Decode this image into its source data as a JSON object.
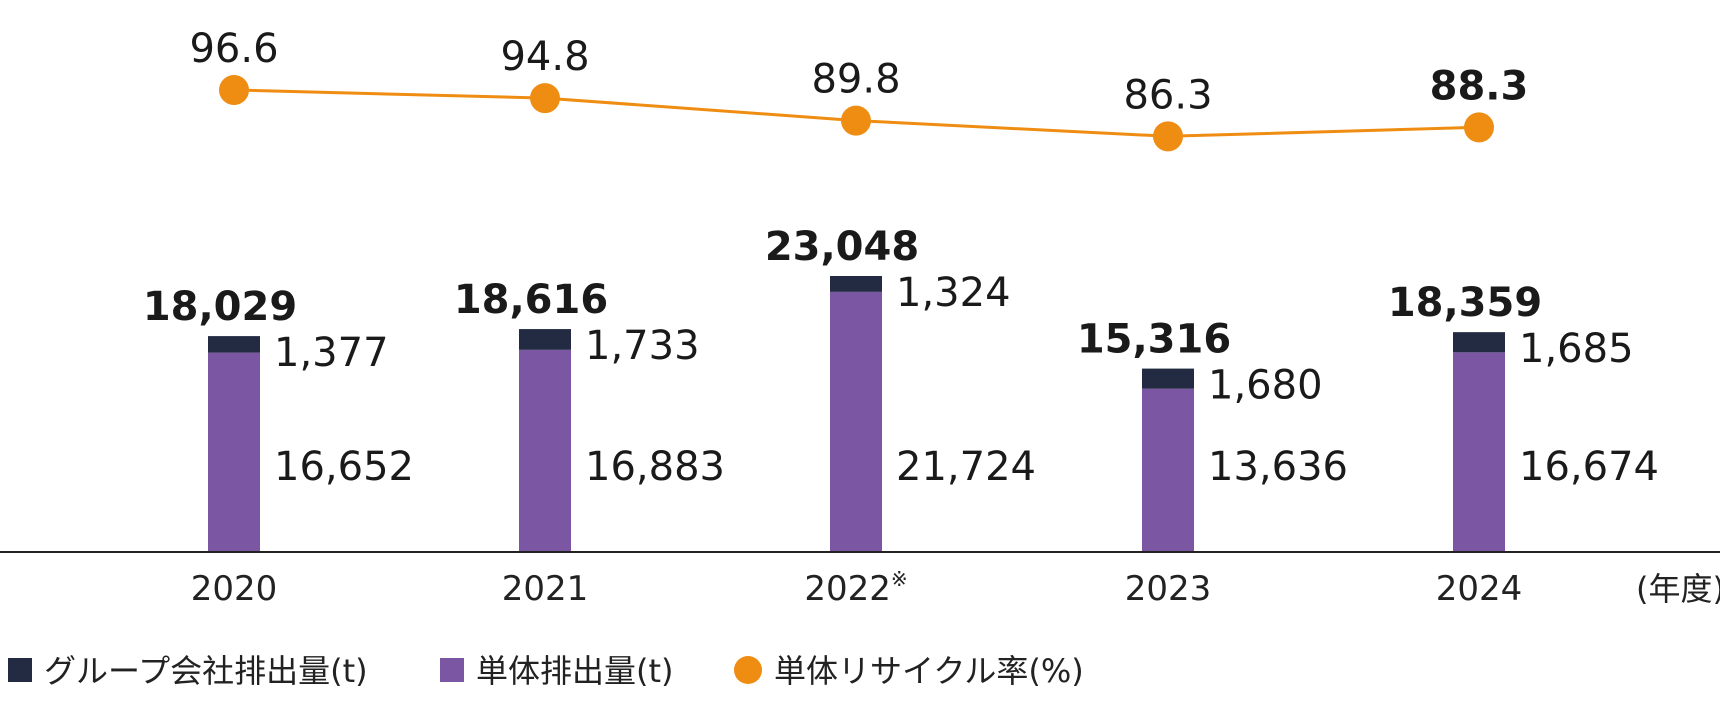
{
  "chart_data": {
    "type": "bar",
    "stacked": true,
    "categories": [
      "2020",
      "2021",
      "2022",
      "2023",
      "2024"
    ],
    "category_marks": [
      "",
      "",
      "※",
      "",
      ""
    ],
    "xunit": "(年度)",
    "series": [
      {
        "name": "単体排出量(t)",
        "color": "#7b57a3",
        "values": [
          16652,
          16883,
          21724,
          13636,
          16674
        ],
        "labels": [
          "16,652",
          "16,883",
          "21,724",
          "13,636",
          "16,674"
        ]
      },
      {
        "name": "グループ会社排出量(t)",
        "color": "#232b42",
        "values": [
          1377,
          1733,
          1324,
          1680,
          1685
        ],
        "labels": [
          "1,377",
          "1,733",
          "1,324",
          "1,680",
          "1,685"
        ]
      }
    ],
    "totals": [
      18029,
      18616,
      23048,
      15316,
      18359
    ],
    "total_labels": [
      "18,029",
      "18,616",
      "23,048",
      "15,316",
      "18,359"
    ],
    "line": {
      "name": "単体リサイクル率(%)",
      "color": "#ef8c12",
      "values": [
        96.6,
        94.8,
        89.8,
        86.3,
        88.3
      ],
      "labels": [
        "96.6",
        "94.8",
        "89.8",
        "86.3",
        "88.3"
      ]
    },
    "legend": [
      "グループ会社排出量(t)",
      "単体排出量(t)",
      "単体リサイクル率(%)"
    ]
  }
}
